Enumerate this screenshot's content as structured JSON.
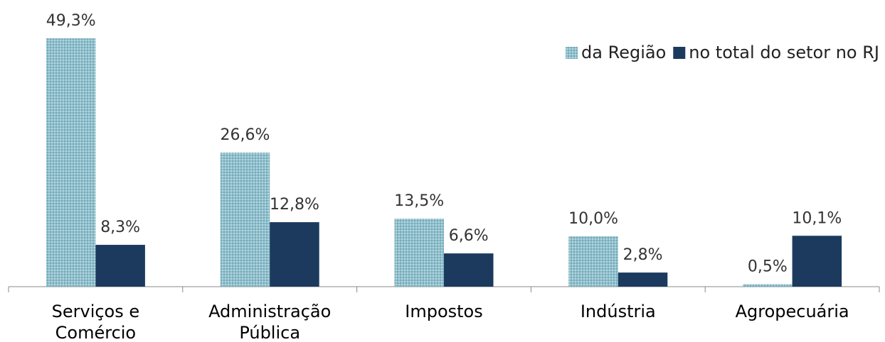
{
  "chart_data": {
    "type": "bar",
    "categories": [
      "Serviços e Comércio",
      "Administração Pública",
      "Impostos",
      "Indústria",
      "Agropecuária"
    ],
    "series": [
      {
        "name": "da Região",
        "color": "#8fbfcc",
        "pattern": true,
        "values": [
          49.3,
          26.6,
          13.5,
          10.0,
          0.5
        ],
        "value_labels": [
          "49,3%",
          "26,6%",
          "13,5%",
          "10,0%",
          "0,5%"
        ]
      },
      {
        "name": "no total do setor no RJ",
        "color": "#1b3a5e",
        "values": [
          8.3,
          12.8,
          6.6,
          2.8,
          10.1
        ],
        "value_labels": [
          "8,3%",
          "12,8%",
          "6,6%",
          "2,8%",
          "10,1%"
        ]
      }
    ],
    "legend": "top-right"
  }
}
